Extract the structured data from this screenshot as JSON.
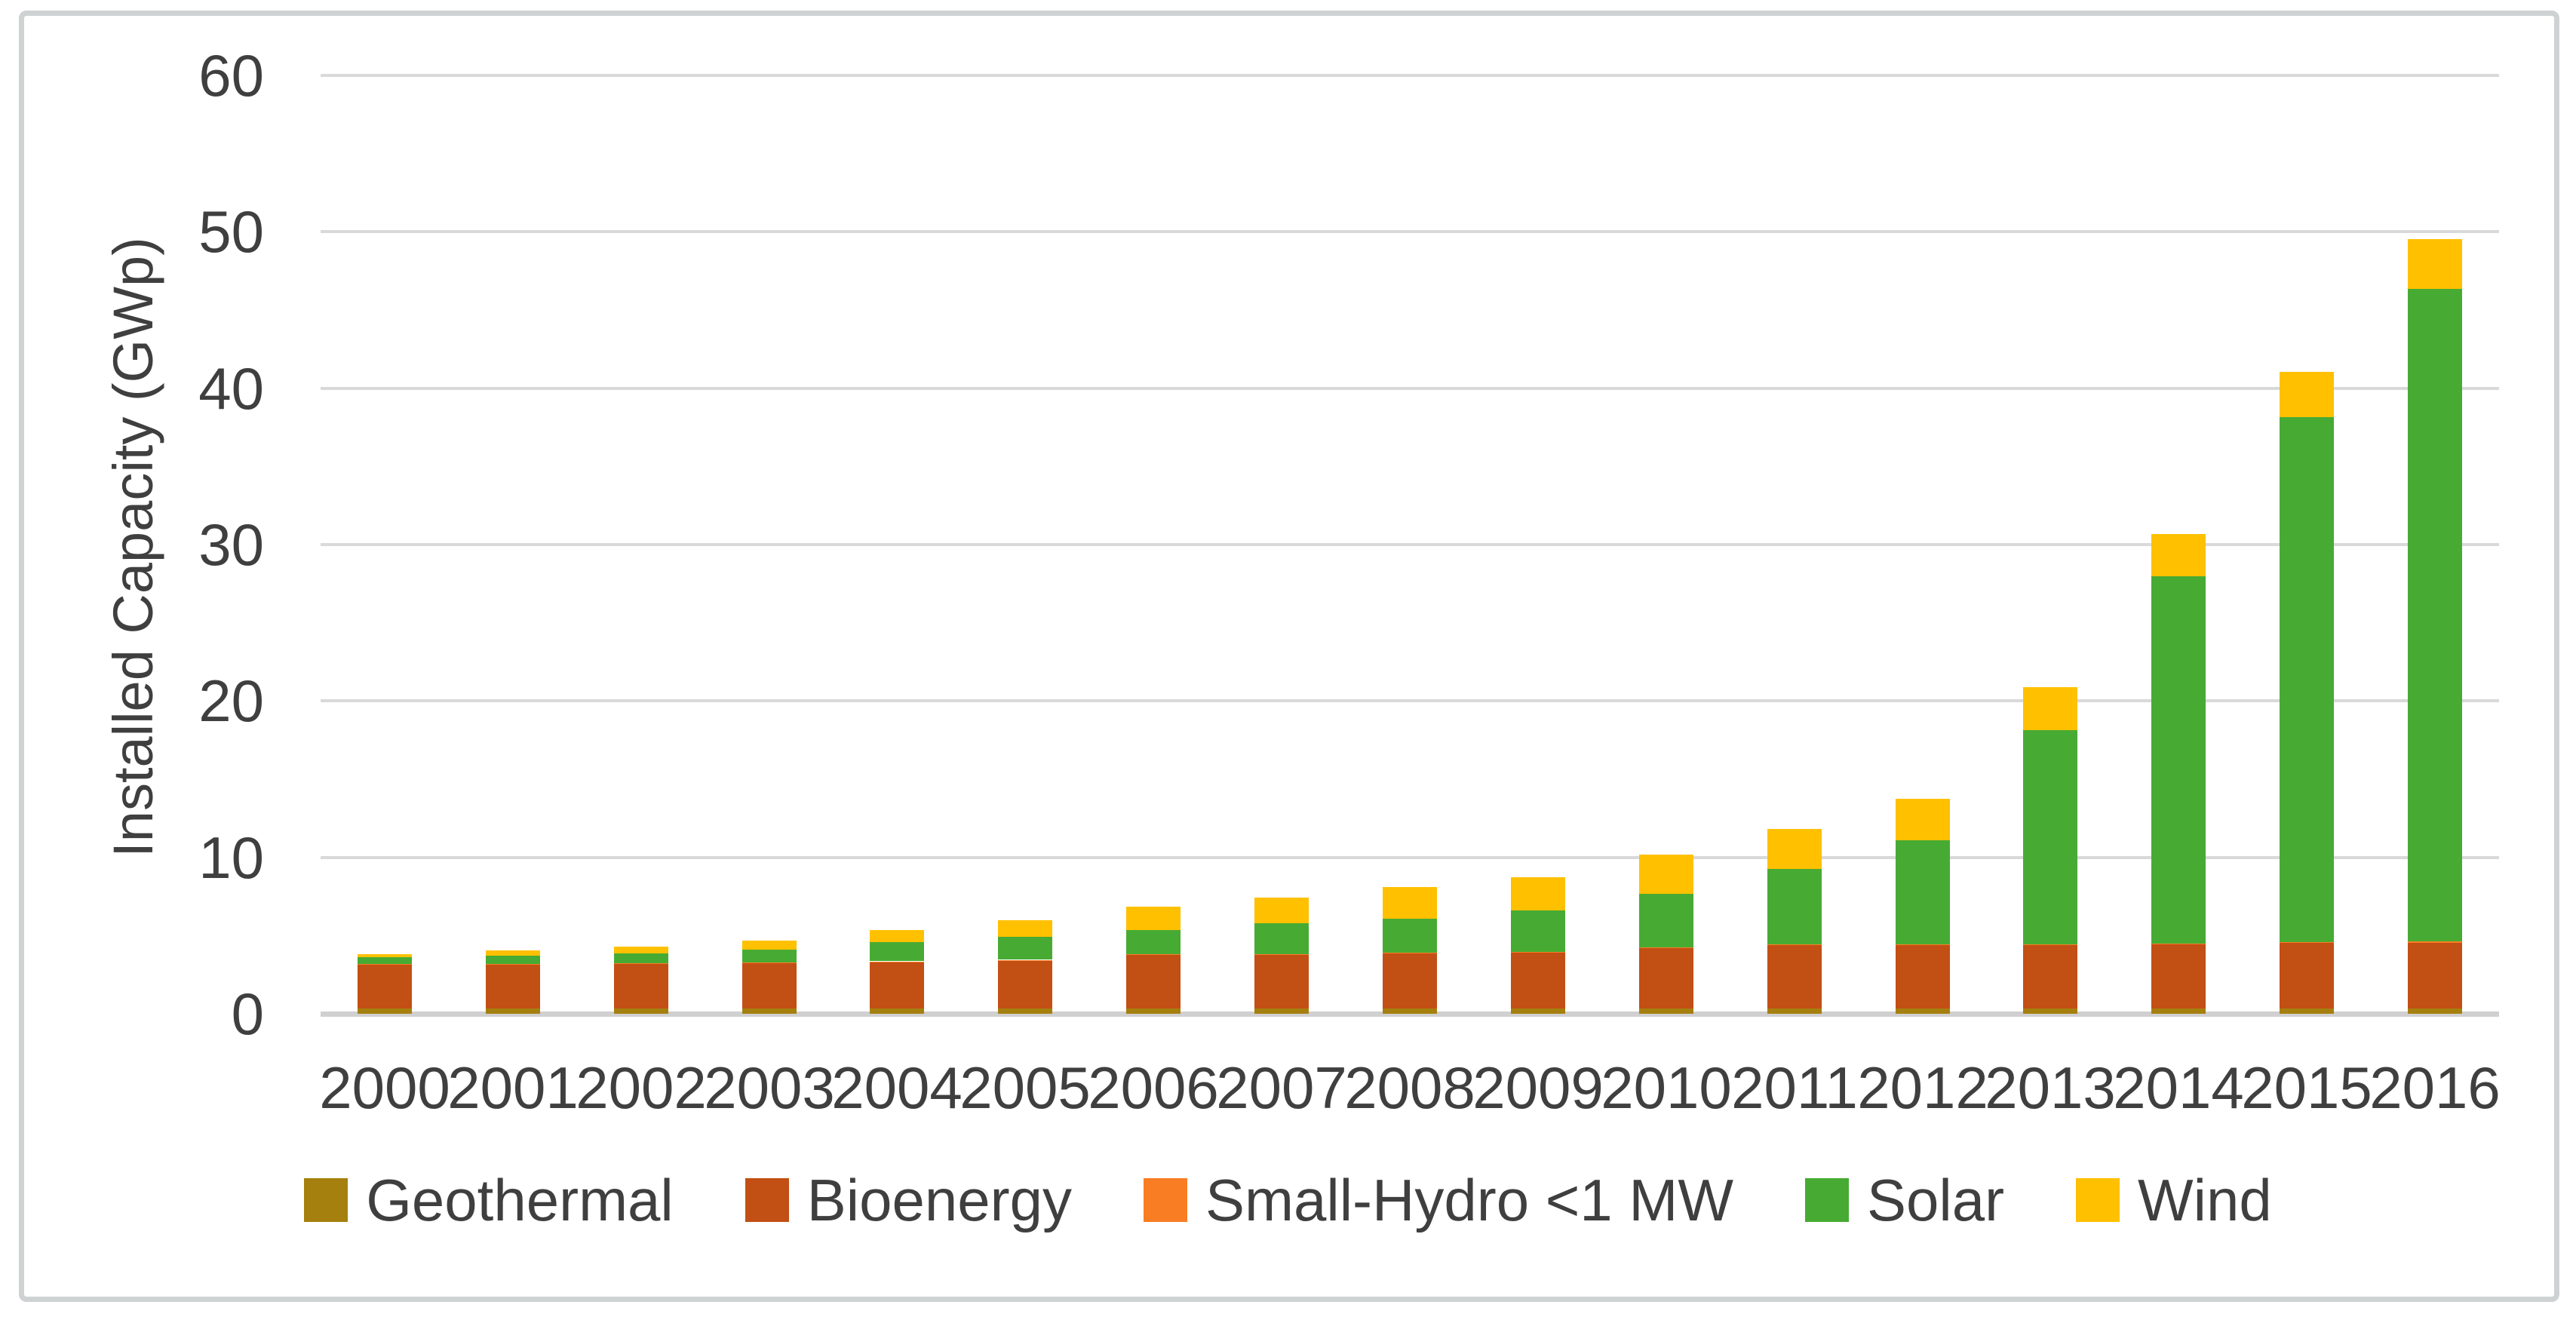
{
  "figure": {
    "background": "#FFFFFF",
    "frame_color": "#CFD2D2",
    "axis_text_color": "#3F3F3F"
  },
  "chart_data": {
    "type": "bar",
    "stacked": true,
    "title": "",
    "xlabel": "",
    "ylabel": "Installed Capacity (GWp)",
    "ylim": [
      0,
      60
    ],
    "yticks": [
      0,
      10,
      20,
      30,
      40,
      50,
      60
    ],
    "grid": true,
    "gridline_color": "#D9D9D9",
    "zero_line_color": "#D0D0D0",
    "legend_position": "bottom",
    "categories": [
      "2000",
      "2001",
      "2002",
      "2003",
      "2004",
      "2005",
      "2006",
      "2007",
      "2008",
      "2009",
      "2010",
      "2011",
      "2012",
      "2013",
      "2014",
      "2015",
      "2016"
    ],
    "series": [
      {
        "name": "Geothermal",
        "color": "#A5800E",
        "values": [
          0.35,
          0.35,
          0.35,
          0.35,
          0.35,
          0.35,
          0.35,
          0.35,
          0.35,
          0.35,
          0.35,
          0.35,
          0.35,
          0.35,
          0.35,
          0.35,
          0.35
        ]
      },
      {
        "name": "Bioenergy",
        "color": "#C24F14",
        "values": [
          2.8,
          2.8,
          2.85,
          2.9,
          2.95,
          3.05,
          3.4,
          3.4,
          3.5,
          3.55,
          3.85,
          4.05,
          4.05,
          4.05,
          4.1,
          4.2,
          4.2
        ]
      },
      {
        "name": "Small-Hydro <1 MW",
        "color": "#F97D22",
        "values": [
          0.05,
          0.05,
          0.05,
          0.05,
          0.05,
          0.05,
          0.05,
          0.05,
          0.05,
          0.05,
          0.05,
          0.05,
          0.05,
          0.05,
          0.05,
          0.05,
          0.1
        ]
      },
      {
        "name": "Solar",
        "color": "#47AB33",
        "values": [
          0.4,
          0.5,
          0.6,
          0.8,
          1.25,
          1.45,
          1.55,
          2.0,
          2.2,
          2.65,
          3.4,
          4.8,
          6.65,
          13.7,
          23.5,
          33.55,
          41.7
        ]
      },
      {
        "name": "Wind",
        "color": "#FFC000",
        "values": [
          0.2,
          0.35,
          0.45,
          0.6,
          0.75,
          1.1,
          1.5,
          1.65,
          2.0,
          2.15,
          2.55,
          2.55,
          2.65,
          2.75,
          2.7,
          2.9,
          3.2
        ]
      }
    ]
  }
}
